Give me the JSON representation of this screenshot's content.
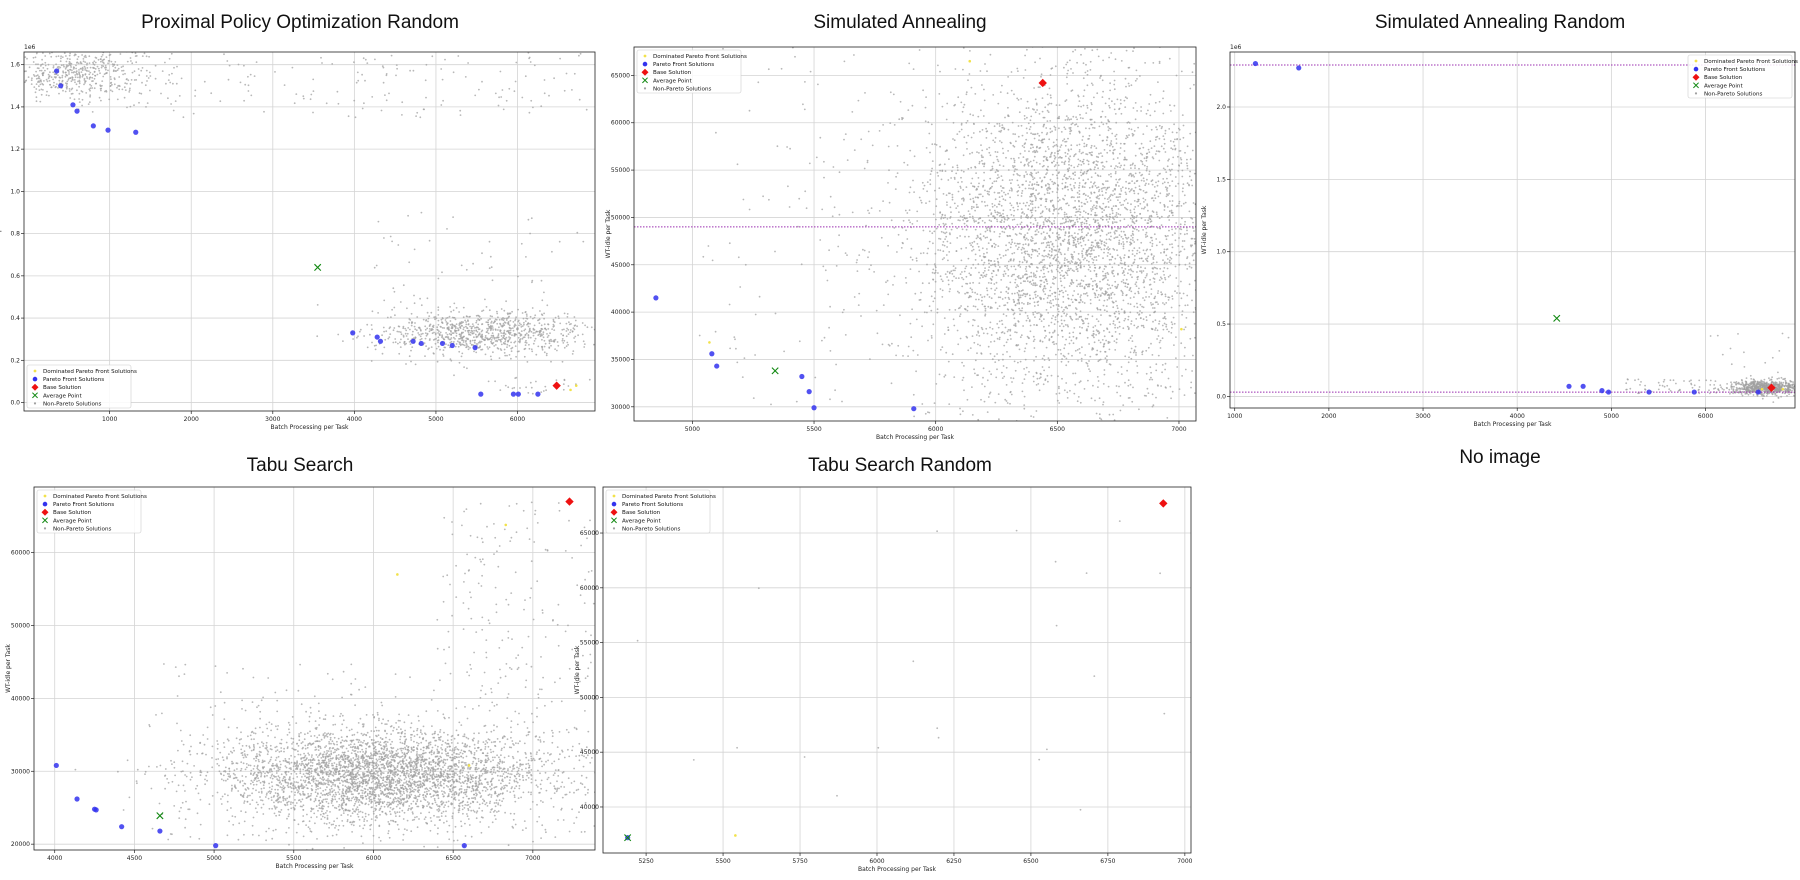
{
  "legend_labels": {
    "dominated": "Dominated Pareto Front Solutions",
    "pareto": "Pareto Front Solutions",
    "base": "Base Solution",
    "average": "Average Point",
    "nonpareto": "Non-Pareto Solutions"
  },
  "colors": {
    "dominated": "#f2e24a",
    "pareto": "#3333ee",
    "base": "#ee1111",
    "average": "#118811",
    "nonpareto": "#a0a0a0",
    "hline": "#9b2fb0"
  },
  "no_image_text": "No image",
  "chart_data": [
    {
      "id": "ppo-random",
      "type": "scatter",
      "title": "Proximal Policy Optimization Random",
      "xlabel": "Batch Processing per Task",
      "ylabel": "WT-idle per Task",
      "xlim": [
        -50,
        6950
      ],
      "ylim": [
        -0.04,
        1.66
      ],
      "y_multiplier": "1e6",
      "xticks": [
        1000,
        2000,
        3000,
        4000,
        5000,
        6000
      ],
      "xtick_labels": [
        "1000",
        "2000",
        "3000",
        "4000",
        "5000",
        "6000"
      ],
      "yticks": [
        0.0,
        0.2,
        0.4,
        0.6,
        0.8,
        1.0,
        1.2,
        1.4,
        1.6
      ],
      "ytick_labels": [
        "0.0",
        "0.2",
        "0.4",
        "0.6",
        "0.8",
        "1.0",
        "1.2",
        "1.4",
        "1.6"
      ],
      "legend": "lower-left",
      "grid": true,
      "pareto": [
        [
          350,
          1.57
        ],
        [
          400,
          1.5
        ],
        [
          550,
          1.41
        ],
        [
          600,
          1.38
        ],
        [
          800,
          1.31
        ],
        [
          980,
          1.29
        ],
        [
          1320,
          1.28
        ],
        [
          3980,
          0.33
        ],
        [
          4280,
          0.31
        ],
        [
          4320,
          0.29
        ],
        [
          4720,
          0.29
        ],
        [
          4820,
          0.28
        ],
        [
          5080,
          0.28
        ],
        [
          5200,
          0.27
        ],
        [
          5480,
          0.26
        ],
        [
          5550,
          0.04
        ],
        [
          5950,
          0.04
        ],
        [
          6010,
          0.04
        ],
        [
          6250,
          0.04
        ]
      ],
      "base": [
        [
          6480,
          0.08
        ]
      ],
      "average": [
        [
          3550,
          0.64
        ]
      ],
      "dominated": [
        [
          6650,
          0.06
        ],
        [
          6720,
          0.08
        ]
      ],
      "hlines": []
    },
    {
      "id": "simulated-annealing",
      "type": "scatter",
      "title": "Simulated Annealing",
      "xlabel": "Batch Processing per Task",
      "ylabel": "WT-idle per Task",
      "xlim": [
        4760,
        7070
      ],
      "ylim": [
        28500,
        68000
      ],
      "y_multiplier": "",
      "xticks": [
        5000,
        5500,
        6000,
        6500,
        7000
      ],
      "xtick_labels": [
        "5000",
        "5500",
        "6000",
        "6500",
        "7000"
      ],
      "yticks": [
        30000,
        35000,
        40000,
        45000,
        50000,
        55000,
        60000,
        65000
      ],
      "ytick_labels": [
        "30000",
        "35000",
        "40000",
        "45000",
        "50000",
        "55000",
        "60000",
        "65000"
      ],
      "legend": "upper-left",
      "grid": true,
      "pareto": [
        [
          4850,
          41500
        ],
        [
          5080,
          35600
        ],
        [
          5100,
          34300
        ],
        [
          5450,
          33200
        ],
        [
          5480,
          31600
        ],
        [
          5500,
          29900
        ],
        [
          5910,
          29800
        ]
      ],
      "base": [
        [
          6440,
          64200
        ]
      ],
      "average": [
        [
          5340,
          33800
        ]
      ],
      "dominated": [
        [
          5070,
          36800
        ],
        [
          6140,
          66500
        ],
        [
          7010,
          38200
        ]
      ],
      "hlines": [
        49000
      ]
    },
    {
      "id": "simulated-annealing-random",
      "type": "scatter",
      "title": "Simulated Annealing Random",
      "xlabel": "Batch Processing per Task",
      "ylabel": "WT-idle per Task",
      "xlim": [
        950,
        6950
      ],
      "ylim": [
        -0.08,
        2.38
      ],
      "y_multiplier": "1e6",
      "xticks": [
        1000,
        2000,
        3000,
        4000,
        5000,
        6000
      ],
      "xtick_labels": [
        "1000",
        "2000",
        "3000",
        "4000",
        "5000",
        "6000"
      ],
      "yticks": [
        0.0,
        0.5,
        1.0,
        1.5,
        2.0
      ],
      "ytick_labels": [
        "0.0",
        "0.5",
        "1.0",
        "1.5",
        "2.0"
      ],
      "legend": "upper-right",
      "grid": true,
      "pareto": [
        [
          1220,
          2.3
        ],
        [
          1680,
          2.27
        ],
        [
          4550,
          0.07
        ],
        [
          4700,
          0.07
        ],
        [
          4900,
          0.04
        ],
        [
          4970,
          0.03
        ],
        [
          5400,
          0.03
        ],
        [
          5880,
          0.03
        ],
        [
          6560,
          0.03
        ]
      ],
      "base": [
        [
          6700,
          0.06
        ]
      ],
      "average": [
        [
          4420,
          0.54
        ]
      ],
      "dominated": [
        [
          6600,
          0.05
        ],
        [
          6820,
          0.05
        ]
      ],
      "hlines": [
        2.29,
        0.03
      ]
    },
    {
      "id": "tabu-search",
      "type": "scatter",
      "title": "Tabu Search",
      "xlabel": "Batch Processing per Task",
      "ylabel": "WT-idle per Task",
      "xlim": [
        3870,
        7390
      ],
      "ylim": [
        19200,
        69000
      ],
      "y_multiplier": "",
      "xticks": [
        4000,
        4500,
        5000,
        5500,
        6000,
        6500,
        7000
      ],
      "xtick_labels": [
        "4000",
        "4500",
        "5000",
        "5500",
        "6000",
        "6500",
        "7000"
      ],
      "yticks": [
        20000,
        30000,
        40000,
        50000,
        60000
      ],
      "ytick_labels": [
        "20000",
        "30000",
        "40000",
        "50000",
        "60000"
      ],
      "legend": "upper-left",
      "grid": true,
      "pareto": [
        [
          4010,
          30800
        ],
        [
          4140,
          26200
        ],
        [
          4250,
          24800
        ],
        [
          4260,
          24700
        ],
        [
          4420,
          22400
        ],
        [
          4660,
          21800
        ],
        [
          5010,
          19800
        ],
        [
          6570,
          19800
        ]
      ],
      "base": [
        [
          7230,
          67000
        ]
      ],
      "average": [
        [
          4660,
          23900
        ]
      ],
      "dominated": [
        [
          6150,
          57000
        ],
        [
          6830,
          63800
        ],
        [
          6600,
          30800
        ]
      ],
      "hlines": []
    },
    {
      "id": "tabu-search-random",
      "type": "scatter",
      "title": "Tabu Search Random",
      "xlabel": "Batch Processing per Task",
      "ylabel": "WT-idle per Task",
      "xlim": [
        5110,
        7020
      ],
      "ylim": [
        35800,
        69200
      ],
      "y_multiplier": "",
      "xticks": [
        5250,
        5500,
        5750,
        6000,
        6250,
        6500,
        6750,
        7000
      ],
      "xtick_labels": [
        "5250",
        "5500",
        "5750",
        "6000",
        "6250",
        "6500",
        "6750",
        "7000"
      ],
      "yticks": [
        40000,
        45000,
        50000,
        55000,
        60000,
        65000
      ],
      "ytick_labels": [
        "40000",
        "45000",
        "50000",
        "55000",
        "60000",
        "65000"
      ],
      "legend": "upper-left",
      "grid": true,
      "pareto": [
        [
          5190,
          37200
        ]
      ],
      "base": [
        [
          6930,
          67700
        ]
      ],
      "average": [
        [
          5190,
          37200
        ]
      ],
      "dominated": [
        [
          5540,
          37400
        ]
      ],
      "hlines": []
    }
  ]
}
